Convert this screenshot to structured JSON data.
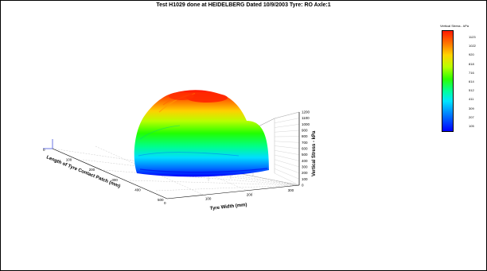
{
  "chart_data": {
    "type": "surface3d",
    "title": "Test H1029 done at HEIDELBERG Dated 10/9/2003 Tyre: RO Axle:1",
    "x_axis": {
      "label": "Tyre Width (mm)",
      "ticks": [
        "0",
        "100",
        "200",
        "300"
      ],
      "range": [
        0,
        320
      ]
    },
    "y_axis": {
      "label": "Length of Tyre Contact Patch (mm)",
      "ticks": [
        "0",
        "100",
        "200",
        "300",
        "400",
        "500"
      ],
      "range": [
        0,
        500
      ]
    },
    "z_axis": {
      "label": "Vertical Stress - kPa",
      "ticks": [
        "0",
        "100",
        "200",
        "300",
        "400",
        "500",
        "600",
        "700",
        "800",
        "900",
        "1000",
        "1100",
        "1200"
      ],
      "range": [
        0,
        1200
      ]
    },
    "colorbar": {
      "title": "Vertical Stress - kPa",
      "ticks": [
        "1123",
        "1022",
        "920",
        "818",
        "716",
        "614",
        "512",
        "411",
        "309",
        "207",
        "105"
      ]
    },
    "grid": true
  }
}
